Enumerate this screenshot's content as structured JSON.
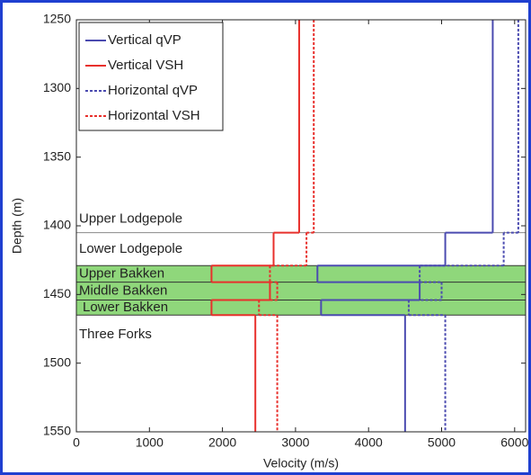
{
  "chart_data": {
    "type": "step-profile",
    "xlabel": "Velocity (m/s)",
    "ylabel": "Depth (m)",
    "xlim": [
      0,
      6150
    ],
    "xticks": [
      0,
      1000,
      2000,
      3000,
      4000,
      5000,
      6000
    ],
    "ylim": [
      1250,
      1550
    ],
    "yticks": [
      1250,
      1300,
      1350,
      1400,
      1450,
      1500,
      1550
    ],
    "y_edges": [
      1250,
      1405,
      1429,
      1441,
      1454,
      1465,
      1550
    ],
    "layers": [
      {
        "name": "Upper Lodgepole",
        "fill": null
      },
      {
        "name": "Lower Lodgepole",
        "fill": null
      },
      {
        "name": "Upper Bakken",
        "fill": "#8fd77b"
      },
      {
        "name": "Middle Bakken",
        "fill": "#8fd77b"
      },
      {
        "name": "Lower Bakken",
        "fill": "#8fd77b"
      },
      {
        "name": "Three Forks",
        "fill": null
      }
    ],
    "series": [
      {
        "name": "Vertical qVP",
        "color": "#4b4bb0",
        "dashed": false,
        "values": [
          5700,
          5050,
          3300,
          4700,
          3350,
          4500
        ]
      },
      {
        "name": "Vertical VSH",
        "color": "#e8302c",
        "dashed": false,
        "values": [
          3050,
          2700,
          1850,
          2650,
          1850,
          2450
        ]
      },
      {
        "name": "Horizontal qVP",
        "color": "#4b4bb0",
        "dashed": true,
        "values": [
          6050,
          5850,
          4700,
          5000,
          4550,
          5050
        ]
      },
      {
        "name": "Horizontal VSH",
        "color": "#e8302c",
        "dashed": true,
        "values": [
          3250,
          3150,
          2650,
          2750,
          2500,
          2750
        ]
      }
    ]
  }
}
